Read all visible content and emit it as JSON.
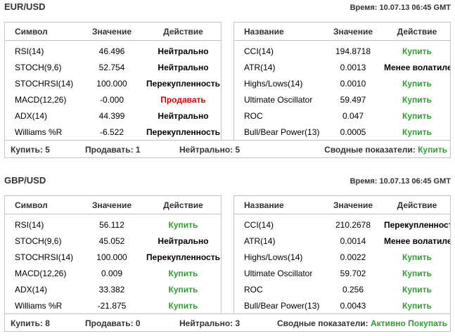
{
  "colors": {
    "buy": "#2f9e2f",
    "sell": "#d90000",
    "border": "#c4c4c4"
  },
  "panels": [
    {
      "pair": "EUR/USD",
      "time": "Время: 10.07.13 06:45 GMT",
      "left_headers": [
        "Символ",
        "Значение",
        "Действие"
      ],
      "right_headers": [
        "Название",
        "Значение",
        "Действие"
      ],
      "left_rows": [
        {
          "symbol": "RSI(14)",
          "value": "46.496",
          "action": "Нейтрально",
          "kind": "neutral"
        },
        {
          "symbol": "STOCH(9,6)",
          "value": "52.754",
          "action": "Нейтрально",
          "kind": "neutral"
        },
        {
          "symbol": "STOCHRSI(14)",
          "value": "100.000",
          "action": "Перекупленность",
          "kind": "over"
        },
        {
          "symbol": "MACD(12,26)",
          "value": "-0.000",
          "action": "Продавать",
          "kind": "sell"
        },
        {
          "symbol": "ADX(14)",
          "value": "44.399",
          "action": "Нейтрально",
          "kind": "neutral"
        },
        {
          "symbol": "Williams %R",
          "value": "-6.522",
          "action": "Перекупленность",
          "kind": "over"
        }
      ],
      "right_rows": [
        {
          "symbol": "CCI(14)",
          "value": "194.8718",
          "action": "Купить",
          "kind": "buy"
        },
        {
          "symbol": "ATR(14)",
          "value": "0.0013",
          "action": "Менее волатилен",
          "kind": "vol"
        },
        {
          "symbol": "Highs/Lows(14)",
          "value": "0.0010",
          "action": "Купить",
          "kind": "buy"
        },
        {
          "symbol": "Ultimate Oscillator",
          "value": "59.497",
          "action": "Купить",
          "kind": "buy"
        },
        {
          "symbol": "ROC",
          "value": "0.047",
          "action": "Купить",
          "kind": "buy"
        },
        {
          "symbol": "Bull/Bear Power(13)",
          "value": "0.0005",
          "action": "Купить",
          "kind": "buy"
        }
      ],
      "summary": {
        "buy": "Купить: 5",
        "sell": "Продавать: 1",
        "neutral": "Нейтрально: 5",
        "overall_label": "Сводные показатели:",
        "overall_value": "Купить"
      }
    },
    {
      "pair": "GBP/USD",
      "time": "Время: 10.07.13 06:45 GMT",
      "left_headers": [
        "Символ",
        "Значение",
        "Действие"
      ],
      "right_headers": [
        "Название",
        "Значение",
        "Действие"
      ],
      "left_rows": [
        {
          "symbol": "RSI(14)",
          "value": "56.112",
          "action": "Купить",
          "kind": "buy"
        },
        {
          "symbol": "STOCH(9,6)",
          "value": "45.052",
          "action": "Нейтрально",
          "kind": "neutral"
        },
        {
          "symbol": "STOCHRSI(14)",
          "value": "100.000",
          "action": "Перекупленность",
          "kind": "over"
        },
        {
          "symbol": "MACD(12,26)",
          "value": "0.009",
          "action": "Купить",
          "kind": "buy"
        },
        {
          "symbol": "ADX(14)",
          "value": "33.382",
          "action": "Купить",
          "kind": "buy"
        },
        {
          "symbol": "Williams %R",
          "value": "-21.875",
          "action": "Купить",
          "kind": "buy"
        }
      ],
      "right_rows": [
        {
          "symbol": "CCI(14)",
          "value": "210.2678",
          "action": "Перекупленность",
          "kind": "over"
        },
        {
          "symbol": "ATR(14)",
          "value": "0.0014",
          "action": "Менее волатилен",
          "kind": "vol"
        },
        {
          "symbol": "Highs/Lows(14)",
          "value": "0.0022",
          "action": "Купить",
          "kind": "buy"
        },
        {
          "symbol": "Ultimate Oscillator",
          "value": "59.702",
          "action": "Купить",
          "kind": "buy"
        },
        {
          "symbol": "ROC",
          "value": "0.256",
          "action": "Купить",
          "kind": "buy"
        },
        {
          "symbol": "Bull/Bear Power(13)",
          "value": "0.0043",
          "action": "Купить",
          "kind": "buy"
        }
      ],
      "summary": {
        "buy": "Купить: 8",
        "sell": "Продавать: 0",
        "neutral": "Нейтрально: 3",
        "overall_label": "Сводные показатели:",
        "overall_value": "Активно Покупать"
      }
    }
  ]
}
